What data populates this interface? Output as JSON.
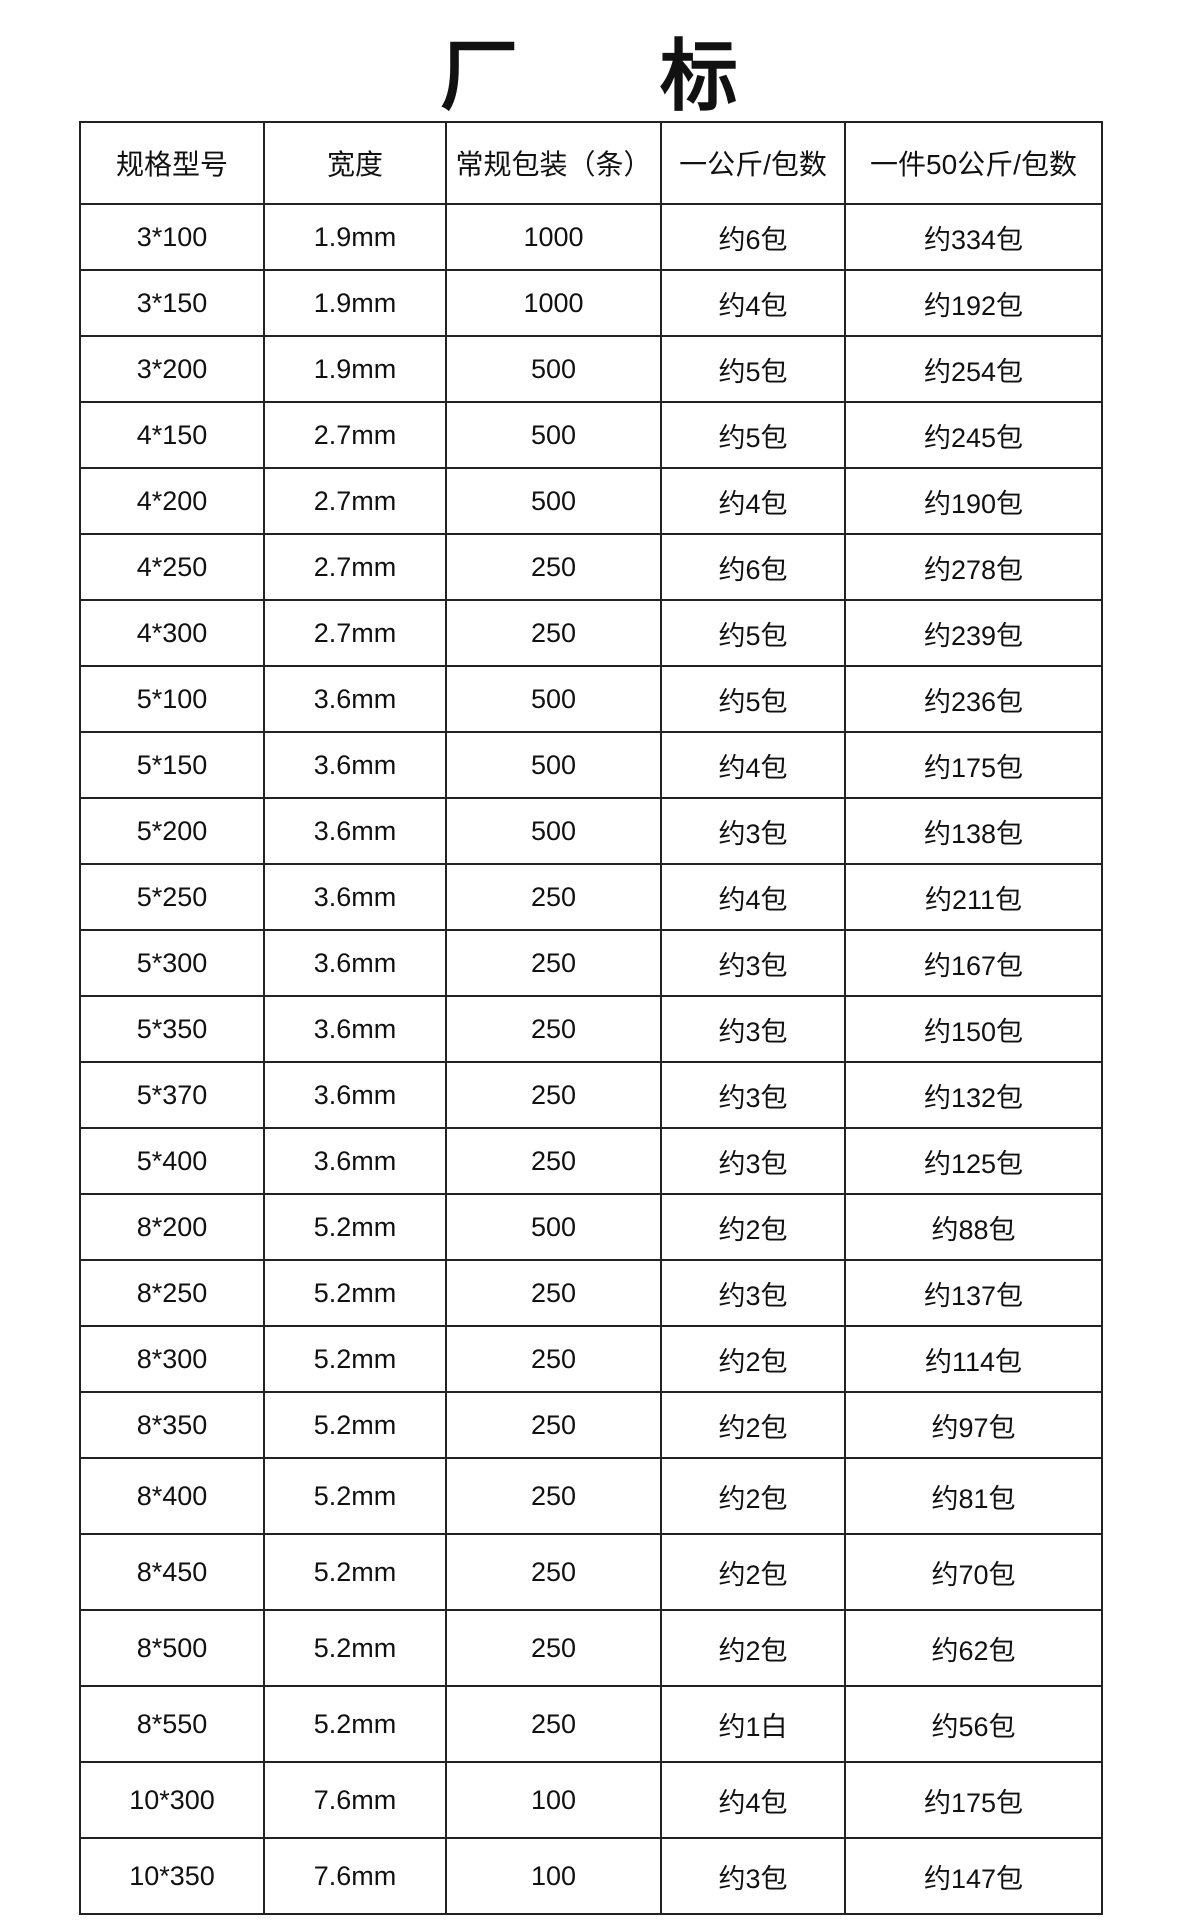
{
  "title": "厂 标",
  "headers": [
    "规格型号",
    "宽度",
    "常规包装（条）",
    "一公斤/包数",
    "一件50公斤/包数"
  ],
  "rows": [
    [
      "3*100",
      "1.9mm",
      "1000",
      "约6包",
      "约334包"
    ],
    [
      "3*150",
      "1.9mm",
      "1000",
      "约4包",
      "约192包"
    ],
    [
      "3*200",
      "1.9mm",
      "500",
      "约5包",
      "约254包"
    ],
    [
      "4*150",
      "2.7mm",
      "500",
      "约5包",
      "约245包"
    ],
    [
      "4*200",
      "2.7mm",
      "500",
      "约4包",
      "约190包"
    ],
    [
      "4*250",
      "2.7mm",
      "250",
      "约6包",
      "约278包"
    ],
    [
      "4*300",
      "2.7mm",
      "250",
      "约5包",
      "约239包"
    ],
    [
      "5*100",
      "3.6mm",
      "500",
      "约5包",
      "约236包"
    ],
    [
      "5*150",
      "3.6mm",
      "500",
      "约4包",
      "约175包"
    ],
    [
      "5*200",
      "3.6mm",
      "500",
      "约3包",
      "约138包"
    ],
    [
      "5*250",
      "3.6mm",
      "250",
      "约4包",
      "约211包"
    ],
    [
      "5*300",
      "3.6mm",
      "250",
      "约3包",
      "约167包"
    ],
    [
      "5*350",
      "3.6mm",
      "250",
      "约3包",
      "约150包"
    ],
    [
      "5*370",
      "3.6mm",
      "250",
      "约3包",
      "约132包"
    ],
    [
      "5*400",
      "3.6mm",
      "250",
      "约3包",
      "约125包"
    ],
    [
      "8*200",
      "5.2mm",
      "500",
      "约2包",
      "约88包"
    ],
    [
      "8*250",
      "5.2mm",
      "250",
      "约3包",
      "约137包"
    ],
    [
      "8*300",
      "5.2mm",
      "250",
      "约2包",
      "约114包"
    ],
    [
      "8*350",
      "5.2mm",
      "250",
      "约2包",
      "约97包"
    ],
    [
      "8*400",
      "5.2mm",
      "250",
      "约2包",
      "约81包"
    ],
    [
      "8*450",
      "5.2mm",
      "250",
      "约2包",
      "约70包"
    ],
    [
      "8*500",
      "5.2mm",
      "250",
      "约2包",
      "约62包"
    ],
    [
      "8*550",
      "5.2mm",
      "250",
      "约1白",
      "约56包"
    ],
    [
      "10*300",
      "7.6mm",
      "100",
      "约4包",
      "约175包"
    ],
    [
      "10*350",
      "7.6mm",
      "100",
      "约3包",
      "约147包"
    ]
  ]
}
